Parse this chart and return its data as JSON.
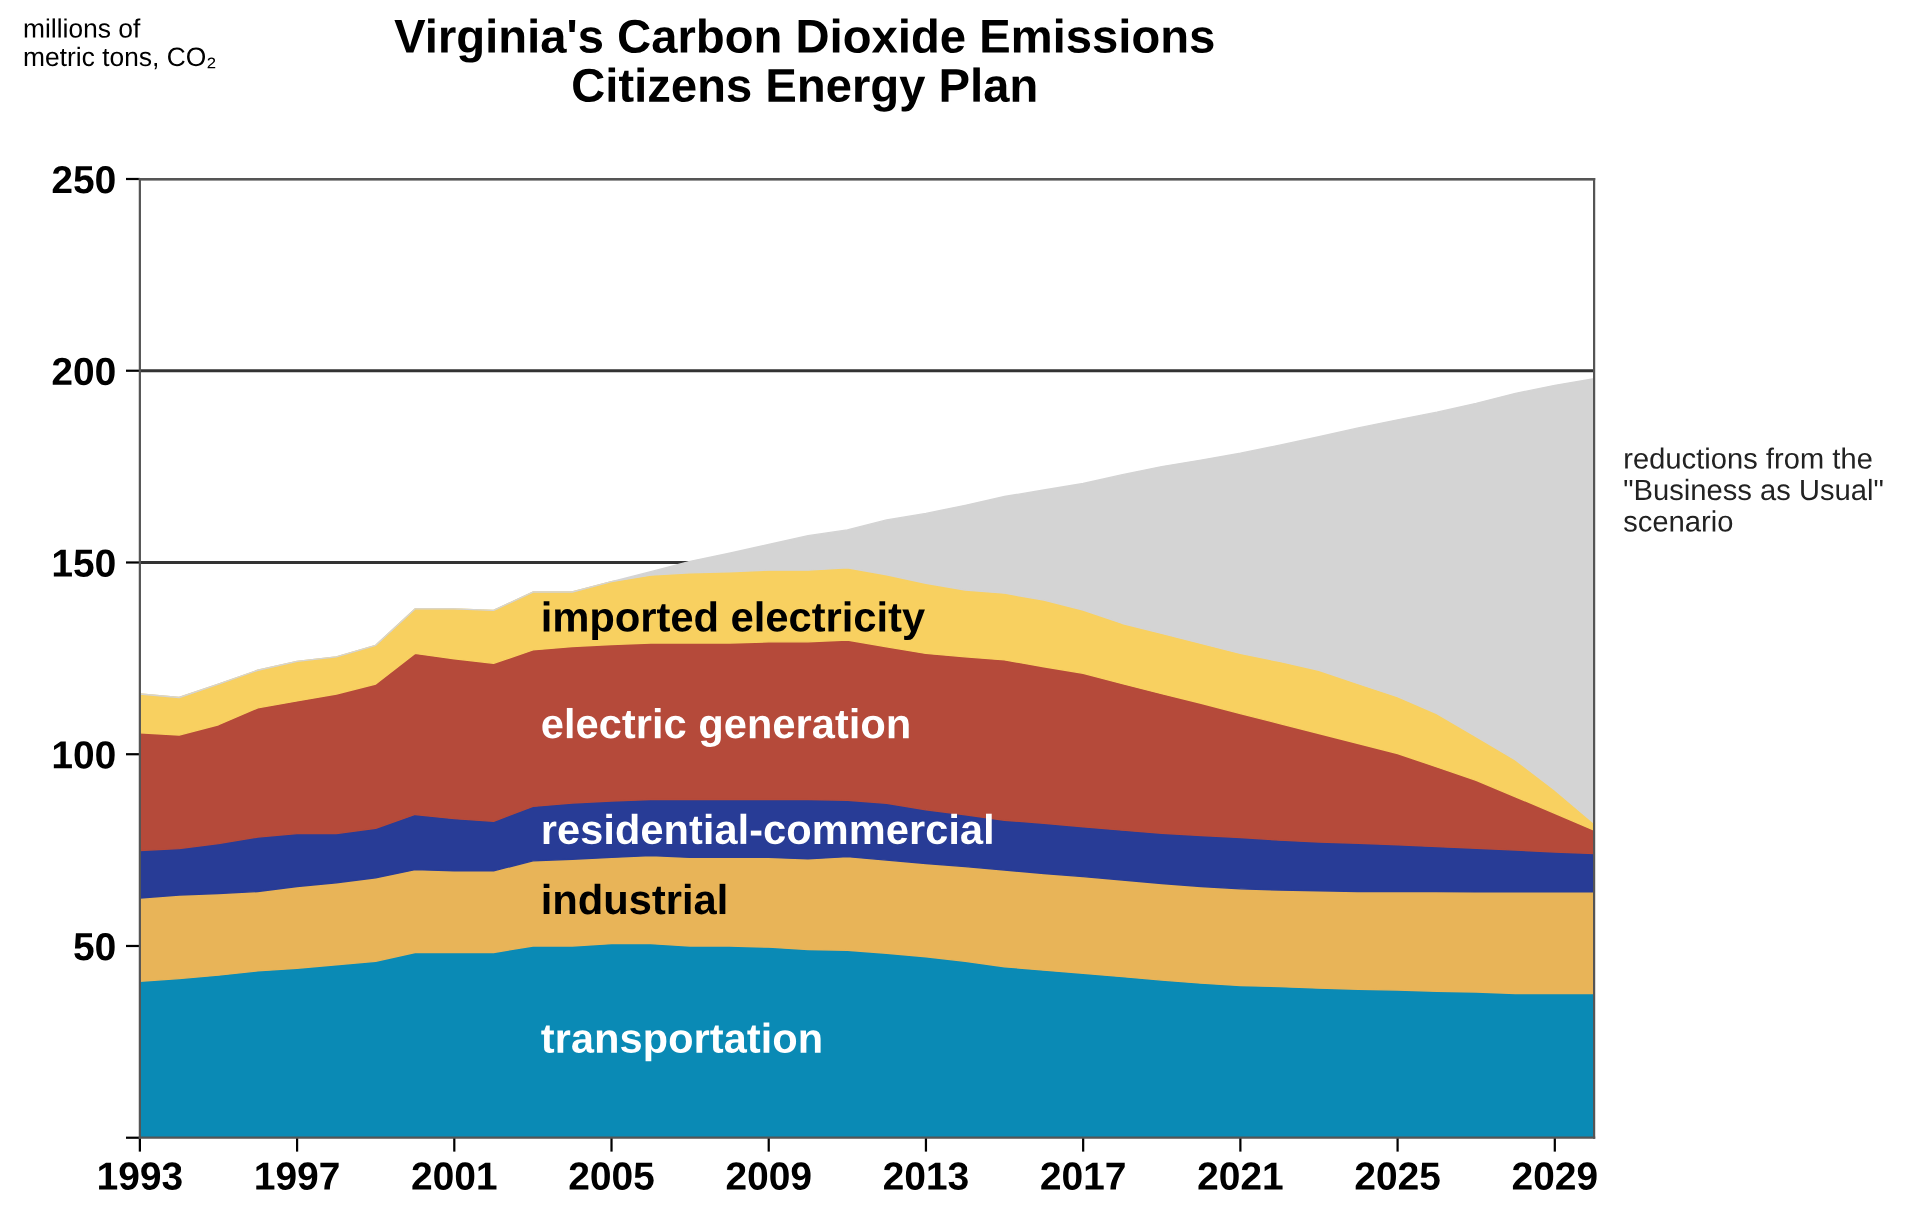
{
  "chart_data": {
    "type": "area",
    "stacked": true,
    "title": "Virginia's Carbon Dioxide Emissions",
    "subtitle": "Citizens Energy Plan",
    "ylabel": "millions of\nmetric tons, CO₂",
    "x": [
      1993,
      1994,
      1995,
      1996,
      1997,
      1998,
      1999,
      2000,
      2001,
      2002,
      2003,
      2004,
      2005,
      2006,
      2007,
      2008,
      2009,
      2010,
      2011,
      2012,
      2013,
      2014,
      2015,
      2016,
      2017,
      2018,
      2019,
      2020,
      2021,
      2022,
      2023,
      2024,
      2025,
      2026,
      2027,
      2028,
      2029,
      2030
    ],
    "series": [
      {
        "name": "transportation",
        "color": "#0a8ab5",
        "values": [
          40.8,
          41.5,
          42.4,
          43.5,
          44.2,
          45.1,
          46.0,
          48.3,
          48.3,
          48.3,
          50.0,
          50.0,
          50.6,
          50.6,
          50.0,
          50.0,
          49.7,
          49.1,
          48.9,
          48.1,
          47.2,
          46.0,
          44.6,
          43.7,
          42.9,
          42.0,
          41.1,
          40.3,
          39.7,
          39.4,
          39.0,
          38.7,
          38.5,
          38.2,
          38.0,
          37.6,
          37.6,
          37.6
        ]
      },
      {
        "name": "industrial",
        "color": "#e8b458",
        "values": [
          21.7,
          21.8,
          21.3,
          20.7,
          21.3,
          21.4,
          21.8,
          21.6,
          21.3,
          21.3,
          22.2,
          22.6,
          22.5,
          23.0,
          23.1,
          23.1,
          23.4,
          23.6,
          24.4,
          24.3,
          24.3,
          24.7,
          25.2,
          25.2,
          25.2,
          25.2,
          25.2,
          25.2,
          25.2,
          25.2,
          25.4,
          25.5,
          25.7,
          26.0,
          26.1,
          26.5,
          26.5,
          26.5
        ]
      },
      {
        "name": "residential-commercial",
        "color": "#283c96",
        "values": [
          12.4,
          12.1,
          13.0,
          14.2,
          13.8,
          12.8,
          12.9,
          14.4,
          13.6,
          12.9,
          14.2,
          14.7,
          14.7,
          14.6,
          15.1,
          15.1,
          15.1,
          15.5,
          14.7,
          14.8,
          14.0,
          13.5,
          13.0,
          13.1,
          13.0,
          13.0,
          13.1,
          13.3,
          13.4,
          13.0,
          12.7,
          12.6,
          12.2,
          11.7,
          11.4,
          10.9,
          10.4,
          10.0
        ]
      },
      {
        "name": "electric generation",
        "color": "#b54a3a",
        "values": [
          30.7,
          29.6,
          31.0,
          33.7,
          34.6,
          36.4,
          37.6,
          42.0,
          41.7,
          41.2,
          40.8,
          40.8,
          40.8,
          40.8,
          40.8,
          40.8,
          41.1,
          41.1,
          41.8,
          40.8,
          40.8,
          41.2,
          41.8,
          40.8,
          40.0,
          38.2,
          36.4,
          34.5,
          32.3,
          30.4,
          28.3,
          26.0,
          23.8,
          20.8,
          17.7,
          13.9,
          10.1,
          6.1
        ]
      },
      {
        "name": "imported electricity",
        "color": "#f8d060",
        "values": [
          10.1,
          9.8,
          10.6,
          9.8,
          10.3,
          9.7,
          10.1,
          11.6,
          13.0,
          13.8,
          15.1,
          14.2,
          16.4,
          17.7,
          18.3,
          18.6,
          18.7,
          18.7,
          18.8,
          18.8,
          18.3,
          17.4,
          17.4,
          17.4,
          16.5,
          15.7,
          15.7,
          15.6,
          15.7,
          16.2,
          16.5,
          15.6,
          14.8,
          13.9,
          11.4,
          9.6,
          6.1,
          1.8
        ]
      },
      {
        "name": "reductions from the \"Business as Usual\" scenario",
        "color": "#d4d4d4",
        "values": [
          0,
          0,
          0,
          0,
          0,
          0,
          0,
          0,
          0,
          0,
          0,
          0,
          0,
          0.9,
          3.0,
          4.8,
          6.7,
          9.0,
          9.9,
          14.3,
          18.2,
          22.1,
          25.2,
          28.7,
          33.0,
          38.8,
          43.5,
          47.8,
          52.2,
          56.4,
          60.9,
          66.7,
          72.2,
          78.6,
          86.9,
          95.6,
          105.5,
          115.9
        ]
      }
    ],
    "xlim": [
      1993,
      2030
    ],
    "xticks": [
      1993,
      1997,
      2001,
      2005,
      2009,
      2013,
      2017,
      2021,
      2025,
      2029
    ],
    "ylim": [
      0,
      250
    ],
    "yticks": [
      {
        "value": 0,
        "label": null
      },
      50,
      100,
      150,
      200,
      250
    ],
    "grid": "y"
  }
}
